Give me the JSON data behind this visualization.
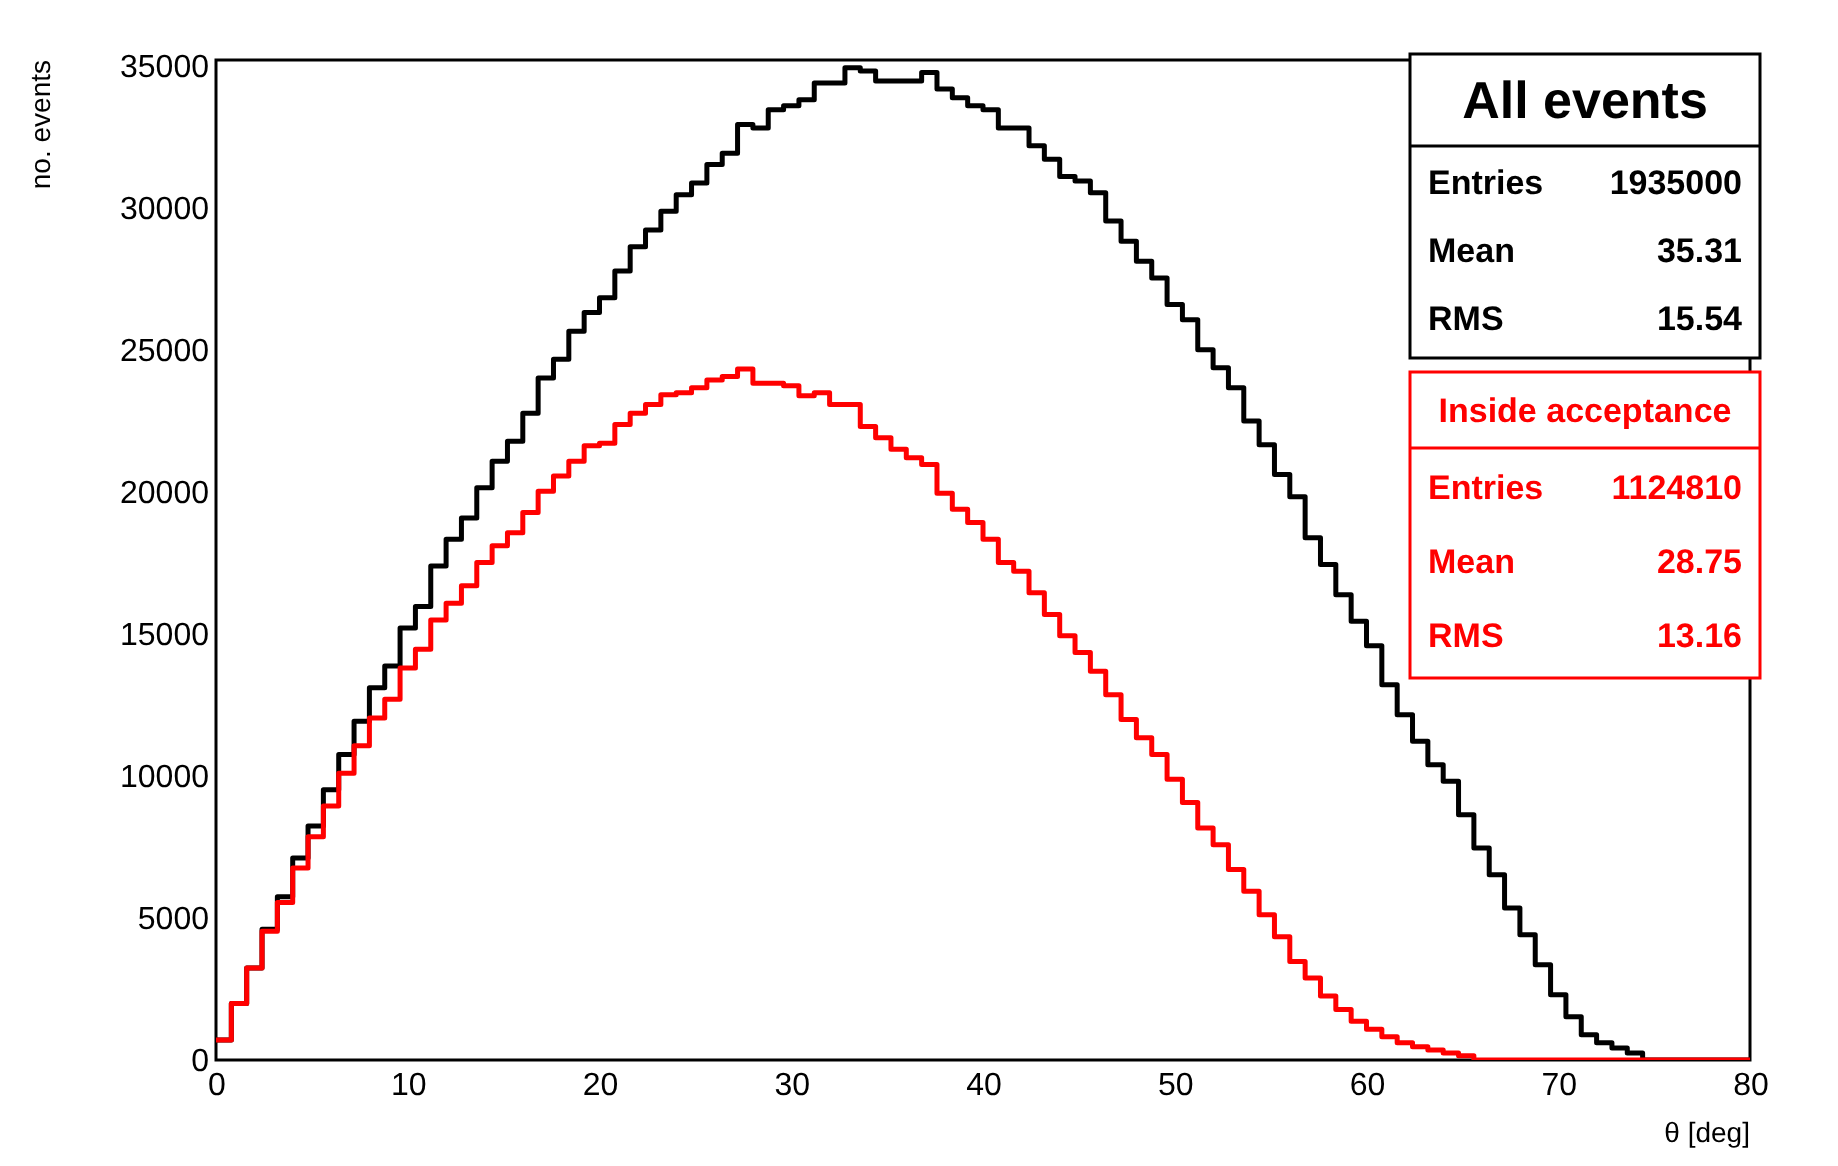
{
  "chart_data": {
    "type": "histogram",
    "xlabel": "θ [deg]",
    "ylabel": "no. events",
    "bins": [
      0,
      0.8,
      1.6,
      2.4,
      3.2,
      4,
      4.8,
      5.6,
      6.4,
      7.2,
      8,
      8.8,
      9.6,
      10.4,
      11.2,
      12,
      12.8,
      13.6,
      14.4,
      15.2,
      16,
      16.8,
      17.6,
      18.4,
      19.2,
      20,
      20.8,
      21.6,
      22.4,
      23.2,
      24,
      24.8,
      25.6,
      26.4,
      27.2,
      28,
      28.8,
      29.6,
      30.4,
      31.2,
      32,
      32.8,
      33.6,
      34.4,
      35.2,
      36,
      36.8,
      37.6,
      38.4,
      39.2,
      40,
      40.8,
      41.6,
      42.4,
      43.2,
      44,
      44.8,
      45.6,
      46.4,
      47.2,
      48,
      48.8,
      49.6,
      50.4,
      51.2,
      52,
      52.8,
      53.6,
      54.4,
      55.2,
      56,
      56.8,
      57.6,
      58.4,
      59.2,
      60,
      60.8,
      61.6,
      62.4,
      63.2,
      64,
      64.8,
      65.6,
      66.4,
      67.2,
      68,
      68.8,
      69.6,
      70.4,
      71.2,
      72,
      72.8,
      73.6,
      74.4,
      75.2,
      76,
      76.8,
      77.6,
      78.4,
      79.2,
      80
    ],
    "series": [
      {
        "name": "All events",
        "color": "#000000",
        "values": [
          700,
          1990,
          3240,
          4600,
          5750,
          7110,
          8240,
          9510,
          10750,
          11920,
          13100,
          13870,
          15210,
          15960,
          17390,
          18330,
          19080,
          20140,
          21080,
          21780,
          22770,
          24010,
          24670,
          25650,
          26310,
          26830,
          27770,
          28630,
          29220,
          29880,
          30460,
          30870,
          31520,
          31920,
          32930,
          32810,
          33450,
          33590,
          33800,
          34390,
          34390,
          34930,
          34810,
          34460,
          34460,
          34460,
          34760,
          34180,
          33870,
          33590,
          33450,
          32810,
          32810,
          32180,
          31710,
          31100,
          30940,
          30530,
          29530,
          28820,
          28120,
          27530,
          26590,
          26060,
          25000,
          24370,
          23660,
          22490,
          21660,
          20610,
          19830,
          18380,
          17440,
          16380,
          15440,
          14580,
          13210,
          12150,
          11220,
          10390,
          9810,
          8630,
          7460,
          6520,
          5350,
          4410,
          3350,
          2300,
          1520,
          890,
          610,
          420,
          250,
          0,
          0,
          0,
          0,
          0,
          0,
          0
        ]
      },
      {
        "name": "Inside acceptance",
        "color": "#ff0000",
        "values": [
          700,
          1990,
          3240,
          4530,
          5540,
          6760,
          7860,
          8940,
          10090,
          11060,
          12040,
          12700,
          13800,
          14460,
          15490,
          16080,
          16690,
          17510,
          18100,
          18560,
          19270,
          20020,
          20560,
          21080,
          21620,
          21710,
          22370,
          22770,
          23070,
          23420,
          23490,
          23660,
          23940,
          24060,
          24320,
          23820,
          23820,
          23730,
          23380,
          23490,
          23070,
          23070,
          22300,
          21900,
          21500,
          21200,
          20960,
          19950,
          19390,
          18920,
          18330,
          17510,
          17200,
          16450,
          15680,
          14930,
          14340,
          13680,
          12860,
          11990,
          11340,
          10750,
          9880,
          9060,
          8170,
          7580,
          6710,
          5940,
          5110,
          4340,
          3470,
          2890,
          2250,
          1780,
          1360,
          1080,
          820,
          610,
          470,
          350,
          250,
          150,
          0,
          0,
          0,
          0,
          0,
          0,
          0,
          0,
          0,
          0,
          0,
          0,
          0,
          0,
          0,
          0,
          0,
          0
        ]
      }
    ],
    "annotations": [
      "Entries 1935000",
      "Mean 35.31",
      "RMS 15.54",
      "Entries 1124810",
      "Mean 28.75",
      "RMS 13.16"
    ],
    "xlim": [
      0,
      80
    ],
    "xticks": [
      0,
      10,
      20,
      30,
      40,
      50,
      60,
      70,
      80
    ],
    "ylim": [
      0,
      35200
    ],
    "yticks": [
      0,
      5000,
      10000,
      15000,
      20000,
      25000,
      30000,
      35000
    ],
    "legend": "top right"
  }
}
